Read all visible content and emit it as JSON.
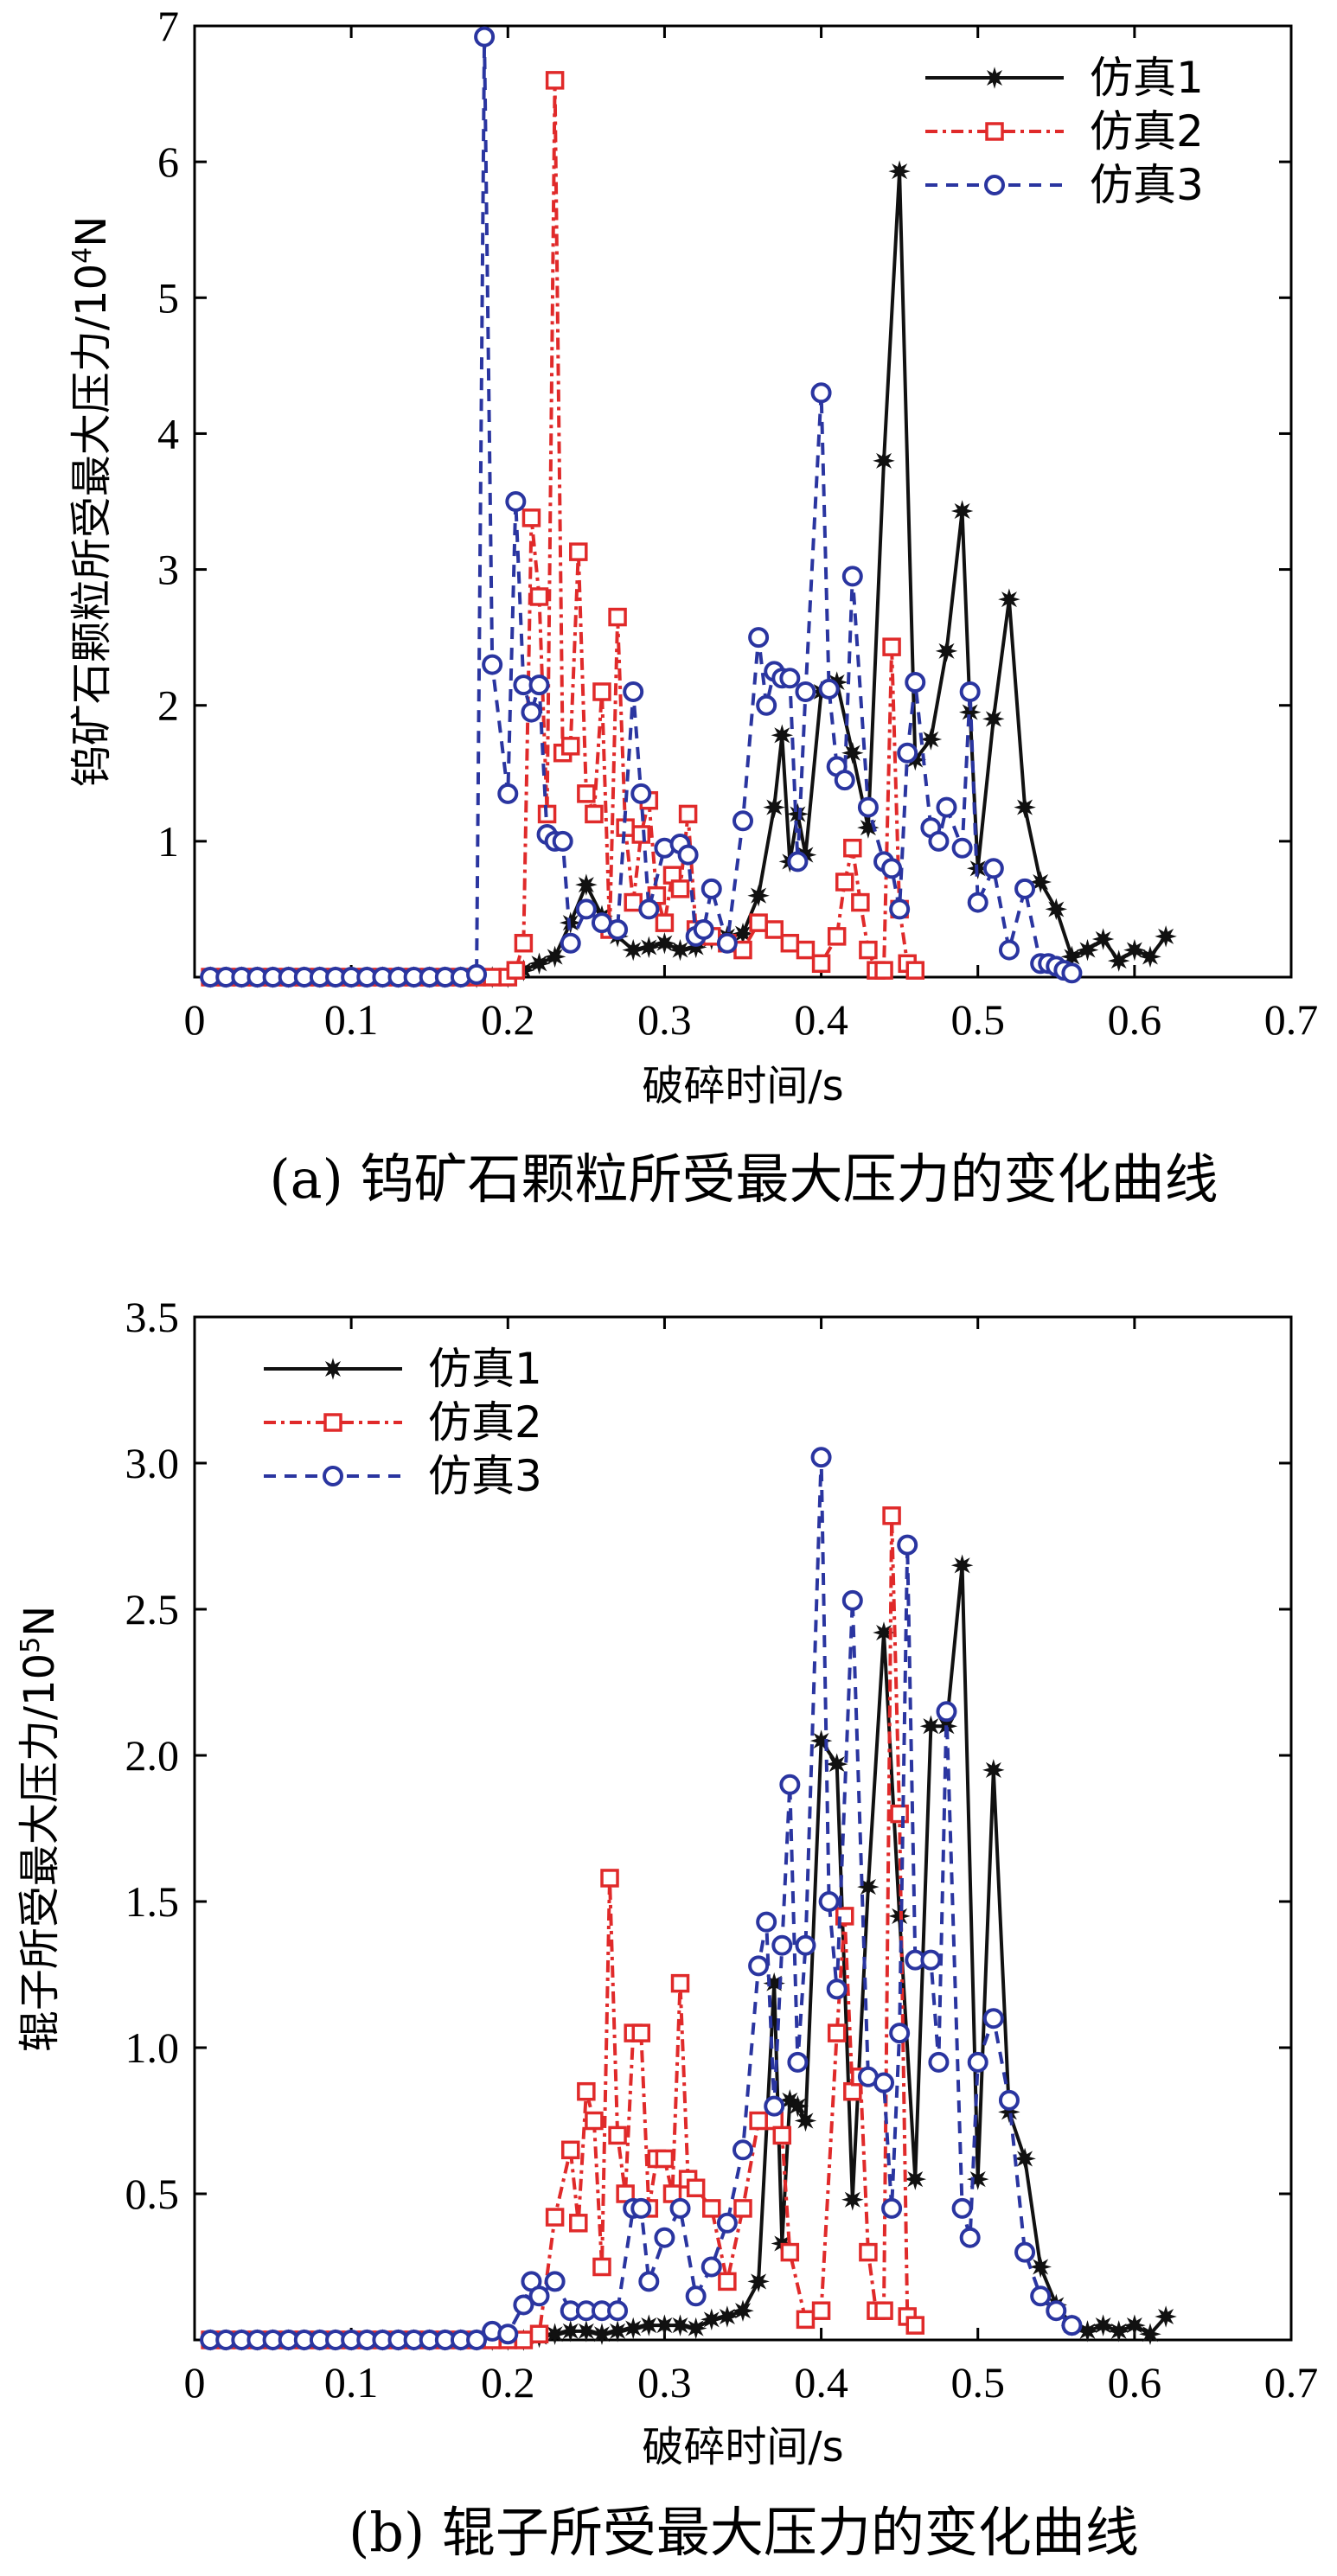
{
  "chart_data": [
    {
      "type": "line",
      "caption": "(a) 钨矿石颗粒所受最大压力的变化曲线",
      "xlabel": "破碎时间/s",
      "ylabel": "钨矿石颗粒所受最大压力/10",
      "ylabel_exp": "4",
      "ylabel_unit": "N",
      "xlim": [
        0,
        0.7
      ],
      "ylim": [
        0,
        7
      ],
      "xticks": [
        "0",
        "0.1",
        "0.2",
        "0.3",
        "0.4",
        "0.5",
        "0.6",
        "0.7"
      ],
      "yticks": [
        "1",
        "2",
        "3",
        "4",
        "5",
        "6",
        "7"
      ],
      "ytick_values": [
        1,
        2,
        3,
        4,
        5,
        6,
        7
      ],
      "legend_position": "top-right",
      "series": [
        {
          "name": "仿真1",
          "color": "#111111",
          "marker": "star",
          "dash": "none",
          "x": [
            0.01,
            0.02,
            0.03,
            0.04,
            0.05,
            0.06,
            0.07,
            0.08,
            0.09,
            0.1,
            0.11,
            0.12,
            0.13,
            0.14,
            0.15,
            0.16,
            0.17,
            0.18,
            0.19,
            0.2,
            0.21,
            0.22,
            0.23,
            0.24,
            0.25,
            0.26,
            0.27,
            0.28,
            0.29,
            0.3,
            0.31,
            0.32,
            0.33,
            0.34,
            0.35,
            0.36,
            0.37,
            0.375,
            0.38,
            0.385,
            0.39,
            0.4,
            0.41,
            0.42,
            0.43,
            0.44,
            0.45,
            0.46,
            0.47,
            0.48,
            0.49,
            0.495,
            0.5,
            0.51,
            0.52,
            0.53,
            0.54,
            0.55,
            0.56,
            0.57,
            0.58,
            0.59,
            0.6,
            0.61,
            0.62
          ],
          "y": [
            0,
            0,
            0,
            0,
            0,
            0,
            0,
            0,
            0,
            0,
            0,
            0,
            0,
            0,
            0,
            0,
            0,
            0,
            0,
            0,
            0.05,
            0.1,
            0.15,
            0.4,
            0.68,
            0.45,
            0.3,
            0.2,
            0.22,
            0.25,
            0.2,
            0.22,
            0.28,
            0.3,
            0.32,
            0.6,
            1.25,
            1.78,
            0.85,
            1.2,
            0.9,
            2.1,
            2.17,
            1.65,
            1.1,
            3.8,
            5.93,
            1.6,
            1.75,
            2.4,
            3.43,
            1.95,
            0.8,
            1.9,
            2.78,
            1.25,
            0.7,
            0.5,
            0.15,
            0.2,
            0.28,
            0.12,
            0.2,
            0.15,
            0.3
          ]
        },
        {
          "name": "仿真2",
          "color": "#e02a2a",
          "marker": "square",
          "dash": "14,6,4,6",
          "x": [
            0.01,
            0.02,
            0.03,
            0.04,
            0.05,
            0.06,
            0.07,
            0.08,
            0.09,
            0.1,
            0.11,
            0.12,
            0.13,
            0.14,
            0.15,
            0.16,
            0.17,
            0.18,
            0.19,
            0.2,
            0.205,
            0.21,
            0.215,
            0.22,
            0.225,
            0.23,
            0.235,
            0.24,
            0.245,
            0.25,
            0.255,
            0.26,
            0.265,
            0.27,
            0.275,
            0.28,
            0.285,
            0.29,
            0.295,
            0.3,
            0.305,
            0.31,
            0.315,
            0.32,
            0.33,
            0.34,
            0.35,
            0.36,
            0.37,
            0.38,
            0.39,
            0.4,
            0.41,
            0.415,
            0.42,
            0.425,
            0.43,
            0.435,
            0.44,
            0.445,
            0.45,
            0.455,
            0.46
          ],
          "y": [
            0,
            0,
            0,
            0,
            0,
            0,
            0,
            0,
            0,
            0,
            0,
            0,
            0,
            0,
            0,
            0,
            0,
            0,
            0,
            0,
            0.05,
            0.25,
            3.38,
            2.8,
            1.2,
            6.6,
            1.65,
            1.7,
            3.13,
            1.35,
            1.2,
            2.1,
            0.35,
            2.65,
            1.1,
            0.55,
            1.05,
            1.3,
            0.6,
            0.4,
            0.75,
            0.65,
            1.2,
            0.35,
            0.3,
            0.25,
            0.2,
            0.4,
            0.35,
            0.25,
            0.2,
            0.1,
            0.3,
            0.7,
            0.95,
            0.55,
            0.2,
            0.05,
            0.05,
            2.43,
            0.5,
            0.1,
            0.05
          ]
        },
        {
          "name": "仿真3",
          "color": "#2a35a0",
          "marker": "circle",
          "dash": "14,10",
          "x": [
            0.01,
            0.02,
            0.03,
            0.04,
            0.05,
            0.06,
            0.07,
            0.08,
            0.09,
            0.1,
            0.11,
            0.12,
            0.13,
            0.14,
            0.15,
            0.16,
            0.17,
            0.18,
            0.185,
            0.19,
            0.2,
            0.205,
            0.21,
            0.215,
            0.22,
            0.225,
            0.23,
            0.235,
            0.24,
            0.25,
            0.26,
            0.27,
            0.28,
            0.285,
            0.29,
            0.3,
            0.31,
            0.315,
            0.32,
            0.325,
            0.33,
            0.34,
            0.35,
            0.36,
            0.365,
            0.37,
            0.375,
            0.38,
            0.385,
            0.39,
            0.4,
            0.405,
            0.41,
            0.415,
            0.42,
            0.43,
            0.44,
            0.445,
            0.45,
            0.455,
            0.46,
            0.47,
            0.475,
            0.48,
            0.49,
            0.495,
            0.5,
            0.51,
            0.52,
            0.53,
            0.54,
            0.545,
            0.55,
            0.555,
            0.56
          ],
          "y": [
            0,
            0,
            0,
            0,
            0,
            0,
            0,
            0,
            0,
            0,
            0,
            0,
            0,
            0,
            0,
            0,
            0,
            0.02,
            6.92,
            2.3,
            1.35,
            3.5,
            2.15,
            1.95,
            2.15,
            1.05,
            1.0,
            1.0,
            0.25,
            0.5,
            0.4,
            0.35,
            2.1,
            1.35,
            0.5,
            0.95,
            0.98,
            0.9,
            0.3,
            0.35,
            0.65,
            0.25,
            1.15,
            2.5,
            2.0,
            2.25,
            2.2,
            2.2,
            0.85,
            2.1,
            4.3,
            2.12,
            1.55,
            1.45,
            2.95,
            1.25,
            0.85,
            0.8,
            0.5,
            1.65,
            2.17,
            1.1,
            1.0,
            1.25,
            0.95,
            2.1,
            0.55,
            0.8,
            0.2,
            0.65,
            0.1,
            0.1,
            0.08,
            0.05,
            0.03
          ]
        }
      ]
    },
    {
      "type": "line",
      "caption": "(b) 辊子所受最大压力的变化曲线",
      "xlabel": "破碎时间/s",
      "ylabel": "辊子所受最大压力/10",
      "ylabel_exp": "5",
      "ylabel_unit": "N",
      "xlim": [
        0,
        0.7
      ],
      "ylim": [
        0,
        3.5
      ],
      "xticks": [
        "0",
        "0.1",
        "0.2",
        "0.3",
        "0.4",
        "0.5",
        "0.6",
        "0.7"
      ],
      "yticks": [
        "0.5",
        "1.0",
        "1.5",
        "2.0",
        "2.5",
        "3.0",
        "3.5"
      ],
      "ytick_values": [
        0.5,
        1.0,
        1.5,
        2.0,
        2.5,
        3.0,
        3.5
      ],
      "legend_position": "top-left",
      "series": [
        {
          "name": "仿真1",
          "color": "#111111",
          "marker": "star",
          "dash": "none",
          "x": [
            0.01,
            0.02,
            0.03,
            0.04,
            0.05,
            0.06,
            0.07,
            0.08,
            0.09,
            0.1,
            0.11,
            0.12,
            0.13,
            0.14,
            0.15,
            0.16,
            0.17,
            0.18,
            0.19,
            0.2,
            0.21,
            0.22,
            0.23,
            0.24,
            0.25,
            0.26,
            0.27,
            0.28,
            0.29,
            0.3,
            0.31,
            0.32,
            0.33,
            0.34,
            0.35,
            0.36,
            0.37,
            0.375,
            0.38,
            0.385,
            0.39,
            0.4,
            0.41,
            0.42,
            0.43,
            0.44,
            0.45,
            0.46,
            0.47,
            0.48,
            0.49,
            0.5,
            0.51,
            0.52,
            0.53,
            0.54,
            0.55,
            0.56,
            0.57,
            0.58,
            0.59,
            0.6,
            0.61,
            0.62
          ],
          "y": [
            0,
            0,
            0,
            0,
            0,
            0,
            0,
            0,
            0,
            0,
            0,
            0,
            0,
            0,
            0,
            0,
            0,
            0,
            0,
            0,
            0,
            0.01,
            0.02,
            0.03,
            0.03,
            0.02,
            0.03,
            0.04,
            0.05,
            0.05,
            0.05,
            0.04,
            0.07,
            0.08,
            0.1,
            0.2,
            1.22,
            0.33,
            0.82,
            0.8,
            0.75,
            2.05,
            1.97,
            0.48,
            1.55,
            2.42,
            1.45,
            0.55,
            2.1,
            2.1,
            2.65,
            0.55,
            1.95,
            0.78,
            0.62,
            0.25,
            0.12,
            0.05,
            0.03,
            0.05,
            0.03,
            0.05,
            0.02,
            0.08
          ]
        },
        {
          "name": "仿真2",
          "color": "#e02a2a",
          "marker": "square",
          "dash": "14,6,4,6",
          "x": [
            0.01,
            0.02,
            0.03,
            0.04,
            0.05,
            0.06,
            0.07,
            0.08,
            0.09,
            0.1,
            0.11,
            0.12,
            0.13,
            0.14,
            0.15,
            0.16,
            0.17,
            0.18,
            0.19,
            0.2,
            0.21,
            0.22,
            0.23,
            0.24,
            0.245,
            0.25,
            0.255,
            0.26,
            0.265,
            0.27,
            0.275,
            0.28,
            0.285,
            0.29,
            0.295,
            0.3,
            0.305,
            0.31,
            0.315,
            0.32,
            0.33,
            0.34,
            0.35,
            0.36,
            0.37,
            0.375,
            0.38,
            0.39,
            0.4,
            0.41,
            0.415,
            0.42,
            0.425,
            0.43,
            0.435,
            0.44,
            0.445,
            0.45,
            0.455,
            0.46
          ],
          "y": [
            0,
            0,
            0,
            0,
            0,
            0,
            0,
            0,
            0,
            0,
            0,
            0,
            0,
            0,
            0,
            0,
            0,
            0,
            0,
            0,
            0,
            0.02,
            0.42,
            0.65,
            0.4,
            0.85,
            0.75,
            0.25,
            1.58,
            0.7,
            0.5,
            1.05,
            1.05,
            0.45,
            0.62,
            0.62,
            0.5,
            1.22,
            0.55,
            0.52,
            0.45,
            0.2,
            0.45,
            0.75,
            0.75,
            0.7,
            0.3,
            0.07,
            0.1,
            1.05,
            1.45,
            0.85,
            0.9,
            0.3,
            0.1,
            0.1,
            2.82,
            1.8,
            0.08,
            0.05
          ]
        },
        {
          "name": "仿真3",
          "color": "#2a35a0",
          "marker": "circle",
          "dash": "14,10",
          "x": [
            0.01,
            0.02,
            0.03,
            0.04,
            0.05,
            0.06,
            0.07,
            0.08,
            0.09,
            0.1,
            0.11,
            0.12,
            0.13,
            0.14,
            0.15,
            0.16,
            0.17,
            0.18,
            0.19,
            0.2,
            0.21,
            0.215,
            0.22,
            0.23,
            0.24,
            0.25,
            0.26,
            0.27,
            0.28,
            0.285,
            0.29,
            0.3,
            0.31,
            0.32,
            0.33,
            0.34,
            0.35,
            0.36,
            0.365,
            0.37,
            0.375,
            0.38,
            0.385,
            0.39,
            0.4,
            0.405,
            0.41,
            0.42,
            0.43,
            0.44,
            0.445,
            0.45,
            0.455,
            0.46,
            0.47,
            0.475,
            0.48,
            0.49,
            0.495,
            0.5,
            0.51,
            0.52,
            0.53,
            0.54,
            0.55,
            0.56
          ],
          "y": [
            0,
            0,
            0,
            0,
            0,
            0,
            0,
            0,
            0,
            0,
            0,
            0,
            0,
            0,
            0,
            0,
            0,
            0,
            0.03,
            0.02,
            0.12,
            0.2,
            0.15,
            0.2,
            0.1,
            0.1,
            0.1,
            0.1,
            0.45,
            0.45,
            0.2,
            0.35,
            0.45,
            0.15,
            0.25,
            0.4,
            0.65,
            1.28,
            1.43,
            0.8,
            1.35,
            1.9,
            0.95,
            1.35,
            3.02,
            1.5,
            1.2,
            2.53,
            0.9,
            0.88,
            0.45,
            1.05,
            2.72,
            1.3,
            1.3,
            0.95,
            2.15,
            0.45,
            0.35,
            0.95,
            1.1,
            0.82,
            0.3,
            0.15,
            0.1,
            0.05
          ]
        }
      ]
    }
  ]
}
